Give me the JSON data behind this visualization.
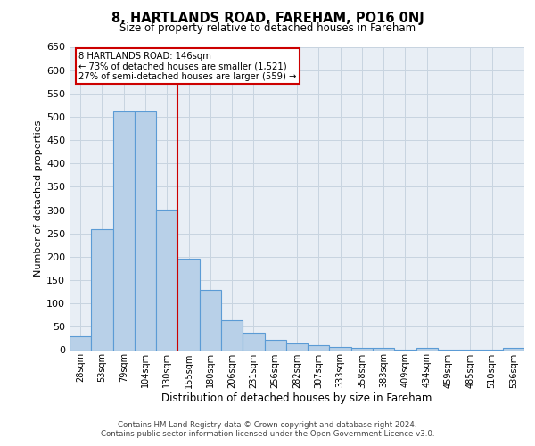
{
  "title": "8, HARTLANDS ROAD, FAREHAM, PO16 0NJ",
  "subtitle": "Size of property relative to detached houses in Fareham",
  "xlabel": "Distribution of detached houses by size in Fareham",
  "ylabel": "Number of detached properties",
  "footer_line1": "Contains HM Land Registry data © Crown copyright and database right 2024.",
  "footer_line2": "Contains public sector information licensed under the Open Government Licence v3.0.",
  "annotation_title": "8 HARTLANDS ROAD: 146sqm",
  "annotation_line1": "← 73% of detached houses are smaller (1,521)",
  "annotation_line2": "27% of semi-detached houses are larger (559) →",
  "bar_color": "#b8d0e8",
  "bar_edge_color": "#5b9bd5",
  "vline_color": "#cc0000",
  "vline_x": 4.5,
  "annotation_box_color": "#cc0000",
  "background_color": "#ffffff",
  "plot_bg_color": "#e8eef5",
  "grid_color": "#c8d4e0",
  "categories": [
    "28sqm",
    "53sqm",
    "79sqm",
    "104sqm",
    "130sqm",
    "155sqm",
    "180sqm",
    "206sqm",
    "231sqm",
    "256sqm",
    "282sqm",
    "307sqm",
    "333sqm",
    "358sqm",
    "383sqm",
    "409sqm",
    "434sqm",
    "459sqm",
    "485sqm",
    "510sqm",
    "536sqm"
  ],
  "values": [
    30,
    260,
    512,
    511,
    302,
    196,
    130,
    64,
    37,
    22,
    15,
    10,
    6,
    4,
    4,
    1,
    4,
    1,
    1,
    1,
    5
  ],
  "ylim": [
    0,
    650
  ],
  "yticks": [
    0,
    50,
    100,
    150,
    200,
    250,
    300,
    350,
    400,
    450,
    500,
    550,
    600,
    650
  ]
}
